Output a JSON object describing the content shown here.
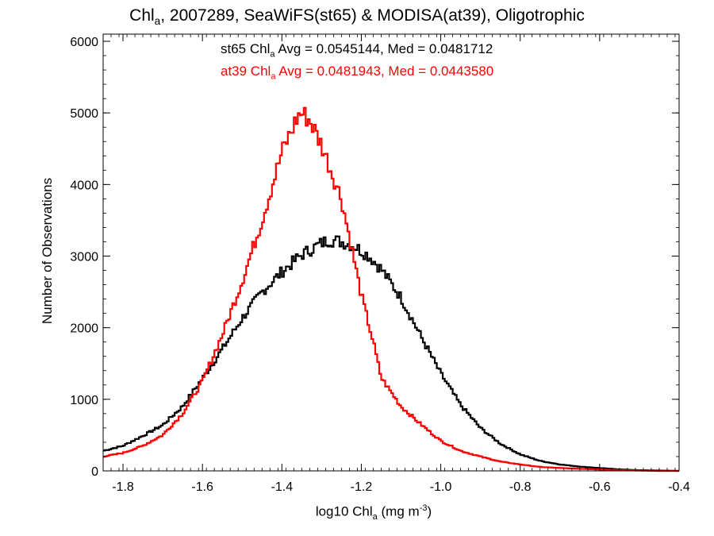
{
  "chart_data": {
    "type": "step-histogram",
    "title": {
      "pre": "Chl",
      "sub": "a",
      "post": ", 2007289, SeaWiFS(st65) & MODISA(at39), Oligotrophic"
    },
    "xlabel": {
      "pre": "log10 Chl",
      "sub": "a",
      "mid": " (mg m",
      "sup": "-3",
      "post": ")"
    },
    "ylabel": "Number of Observations",
    "xlim": [
      -1.85,
      -0.4
    ],
    "ylim": [
      0,
      6100
    ],
    "xticks": [
      -1.8,
      -1.6,
      -1.4,
      -1.2,
      -1.0,
      -0.8,
      -0.6,
      -0.4
    ],
    "xtick_labels": [
      "-1.8",
      "-1.6",
      "-1.4",
      "-1.2",
      "-1.0",
      "-0.8",
      "-0.6",
      "-0.4"
    ],
    "yticks": [
      0,
      1000,
      2000,
      3000,
      4000,
      5000,
      6000
    ],
    "ytick_labels": [
      "0",
      "1000",
      "2000",
      "3000",
      "4000",
      "5000",
      "6000"
    ],
    "annotations": [
      {
        "color": "#000000",
        "pre": "st65 Chl",
        "sub": "a",
        "post": " Avg = 0.0545144, Med = 0.0481712"
      },
      {
        "color": "#ff0000",
        "pre": "at39 Chl",
        "sub": "a",
        "post": " Avg = 0.0481943, Med = 0.0443580"
      }
    ],
    "series": [
      {
        "color": "#000000",
        "points": [
          [
            -1.85,
            280
          ],
          [
            -1.8,
            350
          ],
          [
            -1.75,
            490
          ],
          [
            -1.7,
            640
          ],
          [
            -1.65,
            900
          ],
          [
            -1.6,
            1290
          ],
          [
            -1.55,
            1700
          ],
          [
            -1.5,
            2130
          ],
          [
            -1.45,
            2500
          ],
          [
            -1.4,
            2780
          ],
          [
            -1.35,
            3020
          ],
          [
            -1.3,
            3180
          ],
          [
            -1.28,
            3230
          ],
          [
            -1.25,
            3200
          ],
          [
            -1.22,
            3150
          ],
          [
            -1.18,
            3000
          ],
          [
            -1.15,
            2820
          ],
          [
            -1.1,
            2420
          ],
          [
            -1.05,
            1880
          ],
          [
            -1.0,
            1360
          ],
          [
            -0.95,
            920
          ],
          [
            -0.9,
            600
          ],
          [
            -0.85,
            380
          ],
          [
            -0.8,
            230
          ],
          [
            -0.75,
            140
          ],
          [
            -0.7,
            90
          ],
          [
            -0.65,
            60
          ],
          [
            -0.6,
            40
          ],
          [
            -0.55,
            20
          ],
          [
            -0.5,
            10
          ],
          [
            -0.45,
            5
          ],
          [
            -0.4,
            0
          ]
        ]
      },
      {
        "color": "#ff0000",
        "points": [
          [
            -1.85,
            200
          ],
          [
            -1.8,
            250
          ],
          [
            -1.75,
            350
          ],
          [
            -1.7,
            500
          ],
          [
            -1.65,
            800
          ],
          [
            -1.6,
            1250
          ],
          [
            -1.55,
            1900
          ],
          [
            -1.5,
            2650
          ],
          [
            -1.45,
            3500
          ],
          [
            -1.4,
            4450
          ],
          [
            -1.36,
            4950
          ],
          [
            -1.35,
            5000
          ],
          [
            -1.33,
            4900
          ],
          [
            -1.3,
            4550
          ],
          [
            -1.25,
            3800
          ],
          [
            -1.22,
            3000
          ],
          [
            -1.2,
            2450
          ],
          [
            -1.17,
            1800
          ],
          [
            -1.15,
            1300
          ],
          [
            -1.1,
            900
          ],
          [
            -1.05,
            650
          ],
          [
            -1.0,
            420
          ],
          [
            -0.95,
            280
          ],
          [
            -0.9,
            200
          ],
          [
            -0.85,
            130
          ],
          [
            -0.8,
            90
          ],
          [
            -0.75,
            55
          ],
          [
            -0.7,
            40
          ],
          [
            -0.65,
            30
          ],
          [
            -0.6,
            20
          ],
          [
            -0.55,
            10
          ],
          [
            -0.5,
            5
          ],
          [
            -0.45,
            0
          ],
          [
            -0.4,
            0
          ]
        ]
      }
    ]
  }
}
